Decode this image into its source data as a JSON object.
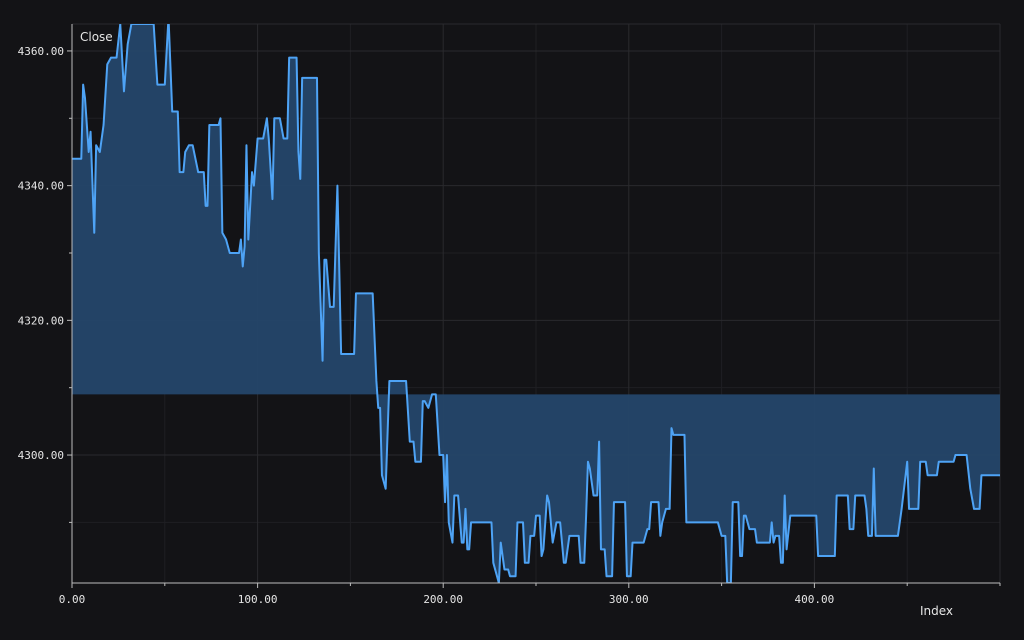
{
  "chart_data": {
    "type": "area",
    "title": "",
    "xlabel": "Index",
    "ylabel": "Close",
    "xlim": [
      0,
      500
    ],
    "ylim": [
      4281,
      4364
    ],
    "baseline": 4309,
    "grid": true,
    "x_ticks": [
      0,
      100,
      200,
      300,
      400
    ],
    "x_tick_labels": [
      "0.00",
      "100.00",
      "200.00",
      "300.00",
      "400.00"
    ],
    "y_ticks": [
      4300,
      4320,
      4340,
      4360
    ],
    "y_tick_labels": [
      "4300.00",
      "4320.00",
      "4340.00",
      "4360.00"
    ],
    "series": [
      {
        "color": "#4ea3f5",
        "fill": "#24466a",
        "points": [
          [
            0,
            4344
          ],
          [
            5,
            4344
          ],
          [
            6,
            4355
          ],
          [
            7,
            4353
          ],
          [
            9,
            4345
          ],
          [
            10,
            4348
          ],
          [
            12,
            4333
          ],
          [
            13,
            4346
          ],
          [
            15,
            4345
          ],
          [
            17,
            4349
          ],
          [
            19,
            4358
          ],
          [
            21,
            4359
          ],
          [
            24,
            4359
          ],
          [
            26,
            4364
          ],
          [
            28,
            4354
          ],
          [
            30,
            4361
          ],
          [
            32,
            4364
          ],
          [
            44,
            4364
          ],
          [
            46,
            4355
          ],
          [
            50,
            4355
          ],
          [
            52,
            4365
          ],
          [
            54,
            4351
          ],
          [
            57,
            4351
          ],
          [
            58,
            4342
          ],
          [
            60,
            4342
          ],
          [
            61,
            4345
          ],
          [
            63,
            4346
          ],
          [
            65,
            4346
          ],
          [
            68,
            4342
          ],
          [
            71,
            4342
          ],
          [
            72,
            4337
          ],
          [
            73,
            4337
          ],
          [
            74,
            4349
          ],
          [
            79,
            4349
          ],
          [
            80,
            4350
          ],
          [
            81,
            4333
          ],
          [
            83,
            4332
          ],
          [
            85,
            4330
          ],
          [
            90,
            4330
          ],
          [
            91,
            4332
          ],
          [
            92,
            4328
          ],
          [
            93,
            4331
          ],
          [
            94,
            4346
          ],
          [
            95,
            4332
          ],
          [
            97,
            4342
          ],
          [
            98,
            4340
          ],
          [
            100,
            4347
          ],
          [
            103,
            4347
          ],
          [
            105,
            4350
          ],
          [
            106,
            4347
          ],
          [
            108,
            4338
          ],
          [
            109,
            4350
          ],
          [
            112,
            4350
          ],
          [
            114,
            4347
          ],
          [
            116,
            4347
          ],
          [
            117,
            4359
          ],
          [
            121,
            4359
          ],
          [
            122,
            4345
          ],
          [
            123,
            4341
          ],
          [
            124,
            4356
          ],
          [
            132,
            4356
          ],
          [
            133,
            4330
          ],
          [
            135,
            4314
          ],
          [
            136,
            4329
          ],
          [
            137,
            4329
          ],
          [
            139,
            4322
          ],
          [
            141,
            4322
          ],
          [
            143,
            4340
          ],
          [
            145,
            4315
          ],
          [
            152,
            4315
          ],
          [
            153,
            4324
          ],
          [
            162,
            4324
          ],
          [
            164,
            4311
          ],
          [
            165,
            4307
          ],
          [
            166,
            4307
          ],
          [
            167,
            4297
          ],
          [
            169,
            4295
          ],
          [
            171,
            4311
          ],
          [
            180,
            4311
          ],
          [
            182,
            4302
          ],
          [
            184,
            4302
          ],
          [
            185,
            4299
          ],
          [
            188,
            4299
          ],
          [
            189,
            4308
          ],
          [
            190,
            4308
          ],
          [
            192,
            4307
          ],
          [
            194,
            4309
          ],
          [
            196,
            4309
          ],
          [
            198,
            4300
          ],
          [
            200,
            4300
          ],
          [
            201,
            4293
          ],
          [
            202,
            4300
          ],
          [
            203,
            4290
          ],
          [
            205,
            4287
          ],
          [
            206,
            4294
          ],
          [
            208,
            4294
          ],
          [
            210,
            4287
          ],
          [
            211,
            4287
          ],
          [
            212,
            4292
          ],
          [
            213,
            4286
          ],
          [
            214,
            4286
          ],
          [
            215,
            4290
          ],
          [
            226,
            4290
          ],
          [
            227,
            4284
          ],
          [
            229,
            4282
          ],
          [
            230,
            4281
          ],
          [
            231,
            4287
          ],
          [
            233,
            4283
          ],
          [
            235,
            4283
          ],
          [
            236,
            4282
          ],
          [
            239,
            4282
          ],
          [
            240,
            4290
          ],
          [
            243,
            4290
          ],
          [
            244,
            4284
          ],
          [
            246,
            4284
          ],
          [
            247,
            4288
          ],
          [
            249,
            4288
          ],
          [
            250,
            4291
          ],
          [
            252,
            4291
          ],
          [
            253,
            4285
          ],
          [
            254,
            4286
          ],
          [
            256,
            4294
          ],
          [
            257,
            4293
          ],
          [
            259,
            4287
          ],
          [
            261,
            4290
          ],
          [
            263,
            4290
          ],
          [
            265,
            4284
          ],
          [
            266,
            4284
          ],
          [
            268,
            4288
          ],
          [
            273,
            4288
          ],
          [
            274,
            4284
          ],
          [
            276,
            4284
          ],
          [
            277,
            4291
          ],
          [
            278,
            4299
          ],
          [
            279,
            4298
          ],
          [
            281,
            4294
          ],
          [
            283,
            4294
          ],
          [
            284,
            4302
          ],
          [
            285,
            4286
          ],
          [
            287,
            4286
          ],
          [
            288,
            4282
          ],
          [
            291,
            4282
          ],
          [
            292,
            4293
          ],
          [
            298,
            4293
          ],
          [
            299,
            4282
          ],
          [
            301,
            4282
          ],
          [
            302,
            4287
          ],
          [
            308,
            4287
          ],
          [
            310,
            4289
          ],
          [
            311,
            4289
          ],
          [
            312,
            4293
          ],
          [
            316,
            4293
          ],
          [
            317,
            4288
          ],
          [
            318,
            4290
          ],
          [
            320,
            4292
          ],
          [
            322,
            4292
          ],
          [
            323,
            4304
          ],
          [
            324,
            4303
          ],
          [
            330,
            4303
          ],
          [
            331,
            4290
          ],
          [
            341,
            4290
          ],
          [
            342,
            4290
          ],
          [
            348,
            4290
          ],
          [
            350,
            4288
          ],
          [
            352,
            4288
          ],
          [
            353,
            4281
          ],
          [
            355,
            4281
          ],
          [
            356,
            4293
          ],
          [
            359,
            4293
          ],
          [
            360,
            4285
          ],
          [
            361,
            4285
          ],
          [
            362,
            4291
          ],
          [
            363,
            4291
          ],
          [
            365,
            4289
          ],
          [
            368,
            4289
          ],
          [
            369,
            4287
          ],
          [
            376,
            4287
          ],
          [
            377,
            4290
          ],
          [
            378,
            4287
          ],
          [
            379,
            4288
          ],
          [
            381,
            4288
          ],
          [
            382,
            4284
          ],
          [
            383,
            4284
          ],
          [
            384,
            4294
          ],
          [
            385,
            4286
          ],
          [
            387,
            4291
          ],
          [
            400,
            4291
          ],
          [
            401,
            4291
          ],
          [
            402,
            4285
          ],
          [
            411,
            4285
          ],
          [
            412,
            4294
          ],
          [
            418,
            4294
          ],
          [
            419,
            4289
          ],
          [
            421,
            4289
          ],
          [
            422,
            4294
          ],
          [
            427,
            4294
          ],
          [
            428,
            4292
          ],
          [
            429,
            4288
          ],
          [
            431,
            4288
          ],
          [
            432,
            4298
          ],
          [
            433,
            4288
          ],
          [
            435,
            4288
          ],
          [
            436,
            4288
          ],
          [
            445,
            4288
          ],
          [
            447,
            4292
          ],
          [
            450,
            4299
          ],
          [
            451,
            4292
          ],
          [
            456,
            4292
          ],
          [
            457,
            4299
          ],
          [
            460,
            4299
          ],
          [
            461,
            4297
          ],
          [
            466,
            4297
          ],
          [
            467,
            4299
          ],
          [
            475,
            4299
          ],
          [
            476,
            4300
          ],
          [
            482,
            4300
          ],
          [
            484,
            4295
          ],
          [
            486,
            4292
          ],
          [
            489,
            4292
          ],
          [
            490,
            4297
          ],
          [
            500,
            4297
          ]
        ]
      }
    ]
  }
}
